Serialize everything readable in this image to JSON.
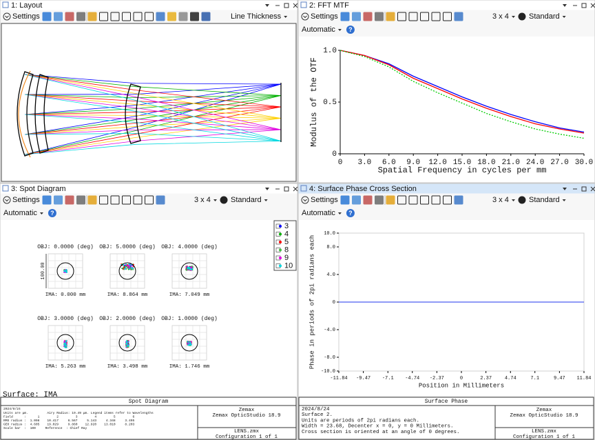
{
  "windows": [
    {
      "title": "1: Layout",
      "toolbar": {
        "settings": "Settings",
        "menu": "Line Thickness"
      }
    },
    {
      "title": "2: FFT MTF",
      "toolbar": {
        "settings": "Settings",
        "grid": "3 x 4",
        "menu": "Standard",
        "mode": "Automatic",
        "help": "?"
      }
    },
    {
      "title": "3: Spot Diagram",
      "toolbar": {
        "settings": "Settings",
        "grid": "3 x 4",
        "menu": "Standard",
        "mode": "Automatic",
        "help": "?"
      },
      "legend": [
        {
          "name": "3",
          "color": "#0000ff"
        },
        {
          "name": "4",
          "color": "#00b000"
        },
        {
          "name": "5",
          "color": "#ff0000"
        },
        {
          "name": "8",
          "color": "#40c040"
        },
        {
          "name": "9",
          "color": "#e000e0"
        },
        {
          "name": "10",
          "color": "#00d8e0"
        }
      ],
      "scale_bar": "100.00",
      "fields": [
        {
          "obj": "OBJ: 0.0000 (deg)",
          "ima": "IMA: 0.000 mm"
        },
        {
          "obj": "OBJ: 5.0000 (deg)",
          "ima": "IMA: 8.864 mm"
        },
        {
          "obj": "OBJ: 4.0000 (deg)",
          "ima": "IMA: 7.049 mm"
        },
        {
          "obj": "OBJ: 3.0000 (deg)",
          "ima": "IMA: 5.263 mm"
        },
        {
          "obj": "OBJ: 2.0000 (deg)",
          "ima": "IMA: 3.498 mm"
        },
        {
          "obj": "OBJ: 1.0000 (deg)",
          "ima": "IMA: 1.746 mm"
        }
      ],
      "surface": "Surface: IMA",
      "info": {
        "title": "Spot Diagram",
        "lines": [
          "2024/8/24",
          "Units are µm.          Airy Radius: 19.49 µm. Legend items refer to Wavelengths",
          "Field      :      1         2         3         4         5         6",
          "RMS radius :  1.098    10.417     6.567     5.143     4.348     3.495",
          "GEO radius :  4.605    19.029     9.860    12.920    13.010     8.203",
          "Scale bar  :  100     Reference  : Chief Ray"
        ],
        "company": [
          "Zemax",
          "Zemax OpticStudio 18.9"
        ],
        "file": [
          "LENS.zmx",
          "Configuration 1 of 1"
        ]
      }
    },
    {
      "title": "4: Surface Phase Cross Section",
      "toolbar": {
        "settings": "Settings",
        "grid": "3 x 4",
        "menu": "Standard",
        "mode": "Automatic",
        "help": "?"
      },
      "info": {
        "title": "Surface Phase",
        "lines": [
          "2024/8/24",
          "Surface 2.",
          "Units are periods of 2pi radians each.",
          "Width = 23.68, Decenter x = 0, y = 0 Millimeters.",
          "Cross section is oriented at an angle of 0 degrees."
        ],
        "company": [
          "Zemax",
          "Zemax OpticStudio 18.9"
        ],
        "file": [
          "LENS.zmx",
          "Configuration 1 of 1"
        ]
      }
    }
  ],
  "chart_data": [
    {
      "type": "line",
      "y_label": "Modulus of the OTF",
      "x_label": "Spatial Frequency in cycles per mm",
      "x": [
        0,
        3,
        6,
        9,
        12,
        15,
        18,
        21,
        24,
        27,
        30
      ],
      "series": [
        {
          "color": "#0000ff",
          "values": [
            1,
            0.95,
            0.87,
            0.75,
            0.65,
            0.55,
            0.46,
            0.38,
            0.31,
            0.25,
            0.21
          ]
        },
        {
          "color": "#ff0000",
          "values": [
            1,
            0.95,
            0.86,
            0.73,
            0.63,
            0.53,
            0.44,
            0.36,
            0.29,
            0.24,
            0.2
          ]
        },
        {
          "color": "#00cc00",
          "dashed": true,
          "values": [
            1,
            0.94,
            0.84,
            0.7,
            0.59,
            0.49,
            0.39,
            0.31,
            0.24,
            0.19,
            0.15
          ]
        }
      ],
      "xlim": [
        0,
        30
      ],
      "ylim": [
        0,
        1
      ],
      "xticks": [
        0,
        {
          "value": 3,
          "label": "3.0"
        },
        {
          "value": 6,
          "label": "6.0"
        },
        {
          "value": 9,
          "label": "9.0"
        },
        {
          "value": 12,
          "label": "12.0"
        },
        {
          "value": 15,
          "label": "15.0"
        },
        {
          "value": 18,
          "label": "18.0"
        },
        {
          "value": 21,
          "label": "21.0"
        },
        {
          "value": 24,
          "label": "24.0"
        },
        {
          "value": 27,
          "label": "27.0"
        },
        {
          "value": 30,
          "label": "30.0"
        }
      ],
      "yticks": [
        0,
        0.5,
        {
          "value": 1,
          "label": "1.0"
        }
      ]
    },
    {
      "type": "line",
      "y_label": "Phase in periods of 2pi radians each",
      "x_label": "Position in Millimeters",
      "x": [
        -11.84,
        11.84
      ],
      "series": [
        {
          "color": "#4a5cf0",
          "values": [
            0,
            0
          ]
        }
      ],
      "xlim": [
        -11.84,
        11.84
      ],
      "ylim": [
        -10,
        10
      ],
      "xticks": [
        -11.84,
        -9.47,
        -7.1,
        -4.74,
        -2.37,
        0,
        2.37,
        4.74,
        7.1,
        9.47,
        11.84
      ],
      "yticks": [
        {
          "value": 10,
          "label": "10.0"
        },
        {
          "value": 8,
          "label": "8.0"
        },
        {
          "value": 4,
          "label": "4.0"
        },
        0,
        {
          "value": -4,
          "label": "-4.0"
        },
        {
          "value": -8,
          "label": "-8.0"
        },
        {
          "value": -10,
          "label": "-10.0"
        }
      ]
    }
  ]
}
